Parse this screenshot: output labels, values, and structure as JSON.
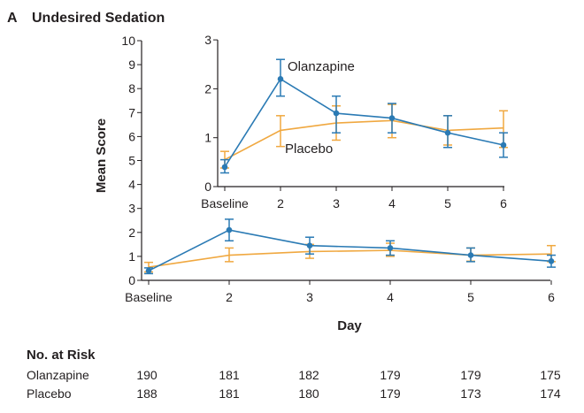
{
  "panel": {
    "letter": "A",
    "title": "Undesired Sedation"
  },
  "colors": {
    "olanzapine": "#2a7ab4",
    "placebo": "#f0a840",
    "axis": "#231f20"
  },
  "chart_data": [
    {
      "name": "main",
      "type": "line",
      "title": "Undesired Sedation",
      "xlabel": "Day",
      "ylabel": "Mean Score",
      "categories": [
        "Baseline",
        "2",
        "3",
        "4",
        "5",
        "6"
      ],
      "yticks": [
        "0",
        "1",
        "2",
        "3",
        "4",
        "5",
        "6",
        "7",
        "8",
        "9",
        "10"
      ],
      "ylim": [
        0,
        10
      ],
      "series": [
        {
          "name": "Olanzapine",
          "color": "#2a7ab4",
          "values": [
            0.4,
            2.1,
            1.45,
            1.35,
            1.05,
            0.8
          ],
          "err_low": [
            0.28,
            1.65,
            1.1,
            1.05,
            0.78,
            0.55
          ],
          "err_high": [
            0.52,
            2.55,
            1.8,
            1.65,
            1.35,
            1.05
          ]
        },
        {
          "name": "Placebo",
          "color": "#f0a840",
          "values": [
            0.55,
            1.05,
            1.2,
            1.25,
            1.05,
            1.1
          ],
          "err_low": [
            0.35,
            0.78,
            0.92,
            1.0,
            0.8,
            0.78
          ],
          "err_high": [
            0.75,
            1.35,
            1.5,
            1.55,
            1.35,
            1.45
          ]
        }
      ]
    },
    {
      "name": "inset",
      "type": "line",
      "categories": [
        "Baseline",
        "2",
        "3",
        "4",
        "5",
        "6"
      ],
      "yticks": [
        "0",
        "1",
        "2",
        "3"
      ],
      "ylim": [
        0,
        3
      ],
      "series": [
        {
          "name": "Olanzapine",
          "color": "#2a7ab4",
          "values": [
            0.4,
            2.2,
            1.5,
            1.4,
            1.1,
            0.85
          ],
          "err_low": [
            0.28,
            1.85,
            1.1,
            1.1,
            0.8,
            0.6
          ],
          "err_high": [
            0.55,
            2.6,
            1.85,
            1.7,
            1.45,
            1.1
          ]
        },
        {
          "name": "Placebo",
          "color": "#f0a840",
          "values": [
            0.55,
            1.15,
            1.3,
            1.35,
            1.15,
            1.2
          ],
          "err_low": [
            0.38,
            0.82,
            0.95,
            1.0,
            0.85,
            0.8
          ],
          "err_high": [
            0.72,
            1.45,
            1.65,
            1.68,
            1.45,
            1.55
          ]
        }
      ]
    }
  ],
  "risk_table": {
    "title": "No. at Risk",
    "rows": [
      {
        "label": "Olanzapine",
        "values": [
          "190",
          "181",
          "182",
          "179",
          "179",
          "175"
        ]
      },
      {
        "label": "Placebo",
        "values": [
          "188",
          "181",
          "180",
          "179",
          "173",
          "174"
        ]
      }
    ]
  }
}
